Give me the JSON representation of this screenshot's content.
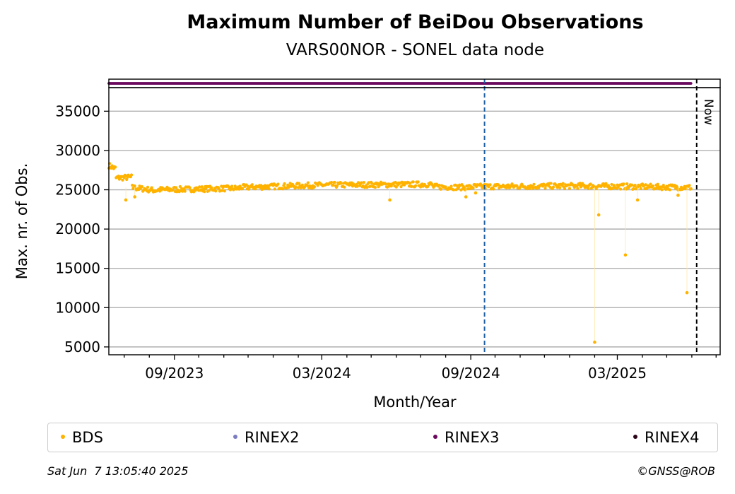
{
  "chart_data": {
    "type": "scatter",
    "title": "Maximum Number of BeiDou Observations",
    "subtitle": "VARS00NOR - SONEL data node",
    "xlabel": "Month/Year",
    "ylabel": "Max. nr. of Obs.",
    "x_tick_labels": [
      "09/2023",
      "03/2024",
      "09/2024",
      "03/2025"
    ],
    "y_tick_labels": [
      "5000",
      "10000",
      "15000",
      "20000",
      "25000",
      "30000",
      "35000"
    ],
    "x_range": [
      "2023-06-12",
      "2025-07-06"
    ],
    "ylim": [
      4000,
      38000
    ],
    "grid": "horizontal",
    "now_label": "Now",
    "now_date": "2025-06-07",
    "event_marker_date": "2024-09-18",
    "series": [
      {
        "name": "BDS",
        "color": "#ffb300",
        "x_start": "2023-06-12",
        "x_end": "2025-05-31",
        "baseline_segments": [
          {
            "from": "2023-06-12",
            "to": "2023-06-20",
            "start": 28100,
            "end": 27700
          },
          {
            "from": "2023-06-20",
            "to": "2023-07-10",
            "start": 26500,
            "end": 26600
          },
          {
            "from": "2023-07-10",
            "to": "2023-08-10",
            "start": 25300,
            "end": 24900
          },
          {
            "from": "2023-08-10",
            "to": "2023-11-20",
            "start": 25000,
            "end": 25200
          },
          {
            "from": "2023-11-20",
            "to": "2024-03-01",
            "start": 25300,
            "end": 25600
          },
          {
            "from": "2024-03-01",
            "to": "2024-07-15",
            "start": 25600,
            "end": 25700
          },
          {
            "from": "2024-07-15",
            "to": "2024-09-01",
            "start": 25400,
            "end": 25300
          },
          {
            "from": "2024-09-01",
            "to": "2025-01-15",
            "start": 25400,
            "end": 25500
          },
          {
            "from": "2025-01-15",
            "to": "2025-05-31",
            "start": 25500,
            "end": 25300
          }
        ],
        "outliers": [
          {
            "x": "2023-07-03",
            "y": 23700
          },
          {
            "x": "2023-07-14",
            "y": 24100
          },
          {
            "x": "2024-05-24",
            "y": 23700
          },
          {
            "x": "2024-08-26",
            "y": 24100
          },
          {
            "x": "2024-09-07",
            "y": 24600
          },
          {
            "x": "2025-02-01",
            "y": 5600
          },
          {
            "x": "2025-02-06",
            "y": 21800
          },
          {
            "x": "2025-03-11",
            "y": 16700
          },
          {
            "x": "2025-03-26",
            "y": 23700
          },
          {
            "x": "2025-05-15",
            "y": 24300
          },
          {
            "x": "2025-05-26",
            "y": 11900
          }
        ]
      },
      {
        "name": "RINEX2",
        "color": "#7b7bbf"
      },
      {
        "name": "RINEX3",
        "color": "#6a0a5e",
        "x_start": "2023-06-12",
        "x_end": "2025-05-31",
        "track_value": 38600
      },
      {
        "name": "RINEX4",
        "color": "#2a0518"
      }
    ]
  },
  "legend": {
    "items": [
      {
        "label": "BDS",
        "color": "#ffb300"
      },
      {
        "label": "RINEX2",
        "color": "#7b7bbf"
      },
      {
        "label": "RINEX3",
        "color": "#6a0a5e"
      },
      {
        "label": "RINEX4",
        "color": "#2a0518"
      }
    ]
  },
  "footer": {
    "timestamp": "Sat Jun  7 13:05:40 2025",
    "credit": "©GNSS@ROB"
  }
}
